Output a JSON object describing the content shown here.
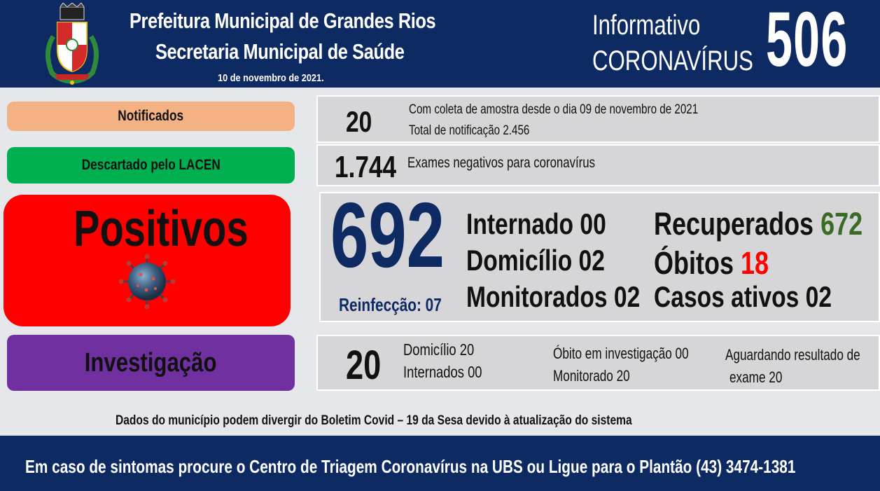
{
  "header": {
    "line1": "Prefeitura Municipal de Grandes Rios",
    "line2": "Secretaria Municipal de Saúde",
    "date": "10 de novembro  de  2021.",
    "info_label": "Informativo",
    "corona_label": "CORONAVÍRUS",
    "bulletin_number": "506"
  },
  "notificados": {
    "label": "Notificados",
    "value": "20",
    "line1": "Com coleta de amostra desde o dia 09 de novembro de 2021",
    "line2": "Total de notificação  2.456"
  },
  "descartado": {
    "label": "Descartado  pelo LACEN",
    "value": "1.744",
    "desc": "Exames negativos  para coronavírus"
  },
  "positivos": {
    "label": "Positivos",
    "value": "692",
    "reinfeccao": "Reinfecção:  07",
    "internado": "Internado 00",
    "domicilio": "Domicílio 02",
    "monitorados": "Monitorados 02",
    "recuperados_label": "Recuperados",
    "recuperados_value": "672",
    "obitos_label": "Óbitos",
    "obitos_value": "18",
    "casos_ativos": "Casos ativos 02"
  },
  "investigacao": {
    "label": "Investigação",
    "value": "20",
    "domicilio": "Domicílio  20",
    "internados": "Internados  00",
    "obito_inv": "Óbito  em investigação  00",
    "monitorado": "Monitorado  20",
    "aguardando1": "Aguardando resultado de",
    "aguardando2": "exame 20"
  },
  "disclaimer": "Dados  do  município  podem  divergir  do  Boletim  Covid  –  19  da  Sesa  devido  à  atualização  do  sistema",
  "footer": "Em  caso  de  sintomas  procure  o  Centro  de  Triagem  Coronavírus  na  UBS  ou  Ligue  para  o  Plantão  (43) 3474-1381",
  "colors": {
    "navy": "#0e2a63",
    "notificados": "#f4b183",
    "descartado": "#00b050",
    "positivos": "#ff0000",
    "investigacao": "#7030a0",
    "recuperados": "#3a6b22",
    "obitos": "#ff0000"
  }
}
